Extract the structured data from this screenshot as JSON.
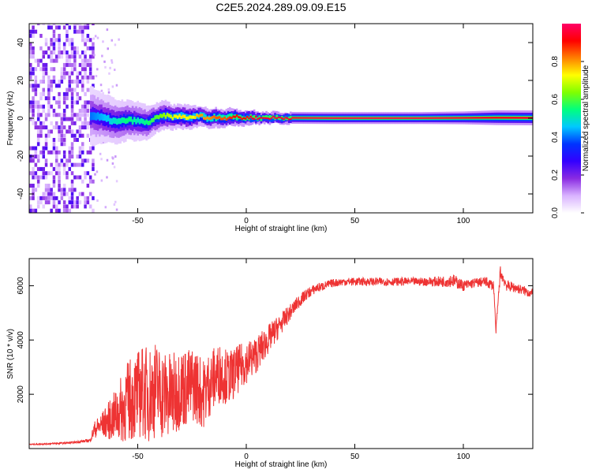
{
  "figure": {
    "title": "C2E5.2024.289.09.09.E15"
  },
  "chart_data": [
    {
      "type": "heatmap",
      "xlabel": "Height of straight line (km)",
      "ylabel": "Frequency (Hz)",
      "xlim": [
        -100,
        132
      ],
      "ylim": [
        -50,
        50
      ],
      "xticks": [
        -50,
        0,
        50,
        100
      ],
      "yticks": [
        -40,
        -20,
        0,
        20,
        40
      ],
      "colorbar": {
        "label": "Normalized spectral amplitude",
        "range": [
          0.0,
          1.0
        ],
        "ticks": [
          0.0,
          0.2,
          0.4,
          0.6,
          0.8
        ],
        "colors": [
          "#ffffff",
          "#d9b3ff",
          "#8a2be2",
          "#3300ff",
          "#0033ff",
          "#00c8ff",
          "#00ff7f",
          "#7fff00",
          "#ffff00",
          "#ff8000",
          "#ff0000",
          "#ff0066"
        ]
      },
      "ridge": {
        "x": [
          -72,
          -66,
          -60,
          -55,
          -50,
          -46,
          -42,
          -38,
          -34,
          -30,
          -26,
          -22,
          -18,
          -14,
          -10,
          -6,
          -2,
          2,
          6,
          10,
          20,
          40,
          60,
          80,
          100,
          115,
          132
        ],
        "y": [
          1.5,
          0.0,
          -2.0,
          -1.0,
          -1.5,
          -2.5,
          0.0,
          1.5,
          0.5,
          1.0,
          0.0,
          1.5,
          0.0,
          0.5,
          0.0,
          1.0,
          0.0,
          0.5,
          0.0,
          0.2,
          0.2,
          0.1,
          0.1,
          0.1,
          0.2,
          0.3,
          0.2
        ],
        "spread": [
          6,
          5,
          4.5,
          4,
          4,
          3.5,
          3,
          3,
          2.5,
          2.5,
          2.5,
          2,
          2,
          2,
          1.8,
          1.8,
          1.5,
          1.5,
          1.2,
          1.2,
          1.2,
          1.2,
          1.2,
          1.2,
          1.3,
          1.5,
          1.5
        ],
        "amplitude": [
          0.4,
          0.45,
          0.5,
          0.55,
          0.5,
          0.55,
          0.6,
          0.65,
          0.7,
          0.75,
          0.7,
          0.8,
          0.8,
          0.85,
          0.85,
          0.9,
          0.9,
          0.95,
          0.95,
          0.95,
          0.95,
          0.97,
          0.97,
          0.97,
          0.95,
          0.93,
          0.95
        ]
      },
      "noise_region": {
        "x_range": [
          -100,
          -71
        ],
        "amplitude_range": [
          0.05,
          0.25
        ]
      }
    },
    {
      "type": "line",
      "xlabel": "Height of straight line (km)",
      "ylabel": "SNR (10 * v/v)",
      "xlim": [
        -100,
        132
      ],
      "ylim": [
        0,
        7000
      ],
      "xticks": [
        -50,
        0,
        50,
        100
      ],
      "yticks": [
        2000,
        4000,
        6000
      ],
      "color": "#ee3333",
      "x": [
        -100,
        -90,
        -80,
        -72,
        -70,
        -66,
        -62,
        -58,
        -55,
        -52,
        -48,
        -45,
        -42,
        -38,
        -34,
        -30,
        -27,
        -24,
        -20,
        -16,
        -12,
        -8,
        -4,
        0,
        4,
        8,
        12,
        16,
        20,
        24,
        28,
        32,
        36,
        40,
        45,
        50,
        60,
        70,
        80,
        90,
        95,
        100,
        105,
        110,
        114,
        115,
        117,
        120,
        125,
        132
      ],
      "y": [
        150,
        180,
        220,
        300,
        700,
        900,
        1100,
        1400,
        1700,
        1900,
        2100,
        2000,
        2200,
        2000,
        1900,
        2300,
        2200,
        2400,
        2000,
        2500,
        2800,
        2600,
        2900,
        3200,
        3400,
        3800,
        4200,
        4600,
        5000,
        5400,
        5700,
        5900,
        6000,
        6100,
        6150,
        6150,
        6150,
        6150,
        6150,
        6150,
        6200,
        6000,
        6100,
        6150,
        6000,
        4300,
        6500,
        6000,
        5900,
        5700
      ],
      "noise_amplitude": [
        20,
        30,
        40,
        60,
        300,
        500,
        800,
        1200,
        1500,
        1600,
        1700,
        1800,
        1800,
        1700,
        1600,
        1500,
        1500,
        1400,
        1300,
        1200,
        1100,
        1000,
        900,
        800,
        700,
        600,
        500,
        400,
        300,
        250,
        200,
        180,
        160,
        150,
        150,
        150,
        150,
        150,
        150,
        200,
        250,
        200,
        180,
        180,
        200,
        100,
        250,
        200,
        180,
        180
      ]
    }
  ]
}
